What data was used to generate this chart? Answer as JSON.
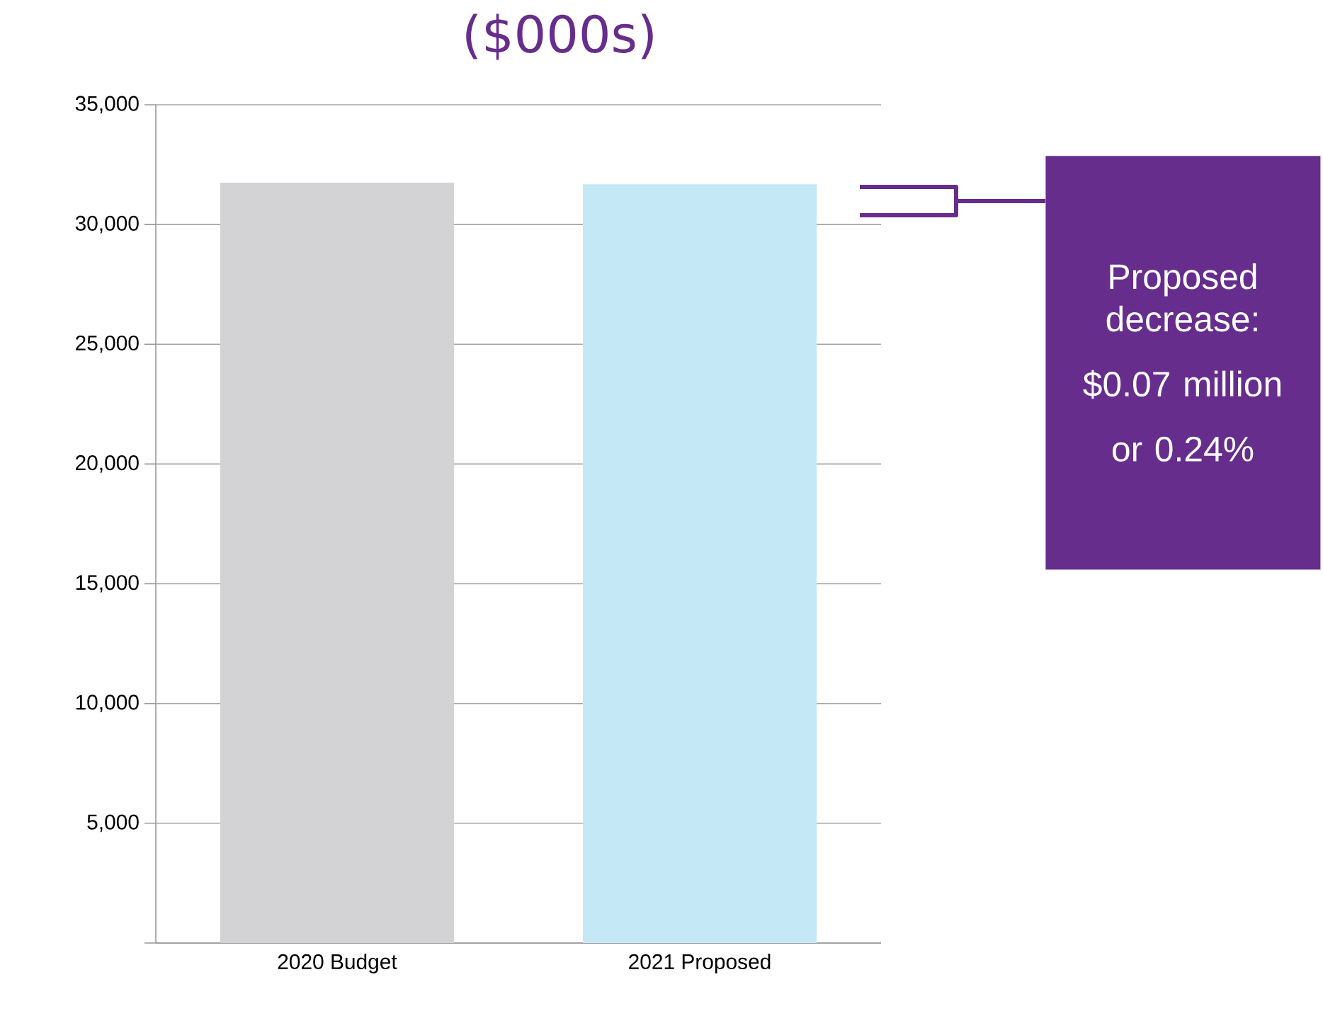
{
  "chart_data": {
    "type": "bar",
    "title": "($000s)",
    "categories": [
      "2020 Budget",
      "2021 Proposed"
    ],
    "values": [
      31750,
      31680
    ],
    "colors": [
      "#d3d3d5",
      "#c5e8f7"
    ],
    "ylim": [
      0,
      35000
    ],
    "yticks": [
      {
        "value": 0,
        "label": null
      },
      {
        "value": 5000,
        "label": "5,000"
      },
      {
        "value": 10000,
        "label": "10,000"
      },
      {
        "value": 15000,
        "label": "15,000"
      },
      {
        "value": 20000,
        "label": "20,000"
      },
      {
        "value": 25000,
        "label": "25,000"
      },
      {
        "value": 30000,
        "label": "30,000"
      },
      {
        "value": 35000,
        "label": "35,000"
      }
    ],
    "grid": "y",
    "annotations": [
      "Proposed decrease:",
      "$0.07 million",
      "or 0.24%"
    ]
  }
}
